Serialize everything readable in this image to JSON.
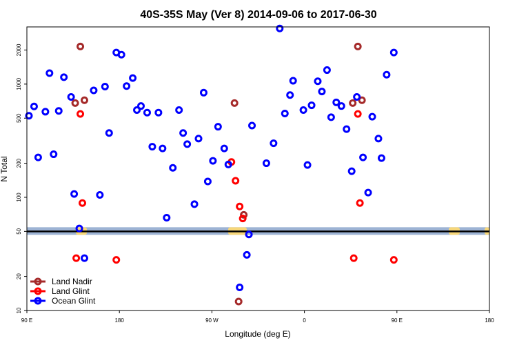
{
  "chart_data": {
    "type": "scatter",
    "title": "40S-35S May (Ver 8)   2014-09-06 to 2017-06-30",
    "xlabel": "Longitude (deg E)",
    "ylabel": "N Total",
    "xlim": [
      90,
      450
    ],
    "ylim": [
      10,
      3200
    ],
    "yscale": "log",
    "x_ticks": [
      {
        "value": 90,
        "label": "90 E"
      },
      {
        "value": 180,
        "label": "180"
      },
      {
        "value": 270,
        "label": "90 W"
      },
      {
        "value": 360,
        "label": "0"
      },
      {
        "value": 450,
        "label": "90 E"
      },
      {
        "value": 540,
        "label": "180"
      }
    ],
    "y_ticks": [
      {
        "value": 10,
        "label": "10"
      },
      {
        "value": 20,
        "label": "20"
      },
      {
        "value": 50,
        "label": "50"
      },
      {
        "value": 100,
        "label": "100"
      },
      {
        "value": 200,
        "label": "200"
      },
      {
        "value": 500,
        "label": "500"
      },
      {
        "value": 1000,
        "label": "1000"
      },
      {
        "value": 2000,
        "label": "2000"
      }
    ],
    "legend_position": "bottom-left",
    "reference_line": {
      "y": 50
    },
    "series": [
      {
        "name": "Land Nadir",
        "color": "#a52a2a",
        "points": [
          {
            "x": 137,
            "y": 680
          },
          {
            "x": 142,
            "y": 2150
          },
          {
            "x": 146,
            "y": 720
          },
          {
            "x": 292,
            "y": 680
          },
          {
            "x": 301,
            "y": 70
          },
          {
            "x": 296,
            "y": 12
          },
          {
            "x": 407,
            "y": 680
          },
          {
            "x": 412,
            "y": 2150
          },
          {
            "x": 416,
            "y": 720
          }
        ]
      },
      {
        "name": "Land Glint",
        "color": "#ff0000",
        "points": [
          {
            "x": 142,
            "y": 545
          },
          {
            "x": 144,
            "y": 89
          },
          {
            "x": 138,
            "y": 29
          },
          {
            "x": 177,
            "y": 28
          },
          {
            "x": 289,
            "y": 205
          },
          {
            "x": 293,
            "y": 140
          },
          {
            "x": 297,
            "y": 83
          },
          {
            "x": 300,
            "y": 65
          },
          {
            "x": 412,
            "y": 545
          },
          {
            "x": 414,
            "y": 89
          },
          {
            "x": 408,
            "y": 29
          },
          {
            "x": 447,
            "y": 28
          }
        ]
      },
      {
        "name": "Ocean Glint",
        "color": "#0000ff",
        "points": [
          {
            "x": 92,
            "y": 525
          },
          {
            "x": 97,
            "y": 635
          },
          {
            "x": 101,
            "y": 225
          },
          {
            "x": 108,
            "y": 570
          },
          {
            "x": 112,
            "y": 1250
          },
          {
            "x": 116,
            "y": 240
          },
          {
            "x": 121,
            "y": 580
          },
          {
            "x": 126,
            "y": 1150
          },
          {
            "x": 133,
            "y": 770
          },
          {
            "x": 136,
            "y": 107
          },
          {
            "x": 141,
            "y": 53
          },
          {
            "x": 146,
            "y": 29
          },
          {
            "x": 155,
            "y": 880
          },
          {
            "x": 161,
            "y": 105
          },
          {
            "x": 166,
            "y": 950
          },
          {
            "x": 170,
            "y": 370
          },
          {
            "x": 177,
            "y": 1900
          },
          {
            "x": 182,
            "y": 1820
          },
          {
            "x": 187,
            "y": 960
          },
          {
            "x": 193,
            "y": 1130
          },
          {
            "x": 197,
            "y": 590
          },
          {
            "x": 201,
            "y": 640
          },
          {
            "x": 207,
            "y": 560
          },
          {
            "x": 212,
            "y": 280
          },
          {
            "x": 218,
            "y": 560
          },
          {
            "x": 222,
            "y": 270
          },
          {
            "x": 226,
            "y": 66
          },
          {
            "x": 232,
            "y": 182
          },
          {
            "x": 238,
            "y": 590
          },
          {
            "x": 242,
            "y": 370
          },
          {
            "x": 246,
            "y": 295
          },
          {
            "x": 253,
            "y": 87
          },
          {
            "x": 257,
            "y": 330
          },
          {
            "x": 262,
            "y": 840
          },
          {
            "x": 266,
            "y": 138
          },
          {
            "x": 271,
            "y": 210
          },
          {
            "x": 276,
            "y": 420
          },
          {
            "x": 282,
            "y": 270
          },
          {
            "x": 286,
            "y": 195
          },
          {
            "x": 297,
            "y": 16
          },
          {
            "x": 304,
            "y": 31
          },
          {
            "x": 306,
            "y": 47
          },
          {
            "x": 309,
            "y": 430
          },
          {
            "x": 323,
            "y": 200
          },
          {
            "x": 330,
            "y": 300
          },
          {
            "x": 336,
            "y": 3100
          },
          {
            "x": 341,
            "y": 550
          },
          {
            "x": 346,
            "y": 800
          },
          {
            "x": 349,
            "y": 1070
          },
          {
            "x": 359,
            "y": 590
          },
          {
            "x": 363,
            "y": 193
          },
          {
            "x": 367,
            "y": 650
          },
          {
            "x": 373,
            "y": 1060
          },
          {
            "x": 377,
            "y": 860
          },
          {
            "x": 382,
            "y": 1330
          },
          {
            "x": 386,
            "y": 510
          },
          {
            "x": 391,
            "y": 690
          },
          {
            "x": 396,
            "y": 640
          },
          {
            "x": 401,
            "y": 400
          },
          {
            "x": 406,
            "y": 170
          },
          {
            "x": 411,
            "y": 770
          },
          {
            "x": 417,
            "y": 225
          },
          {
            "x": 422,
            "y": 110
          },
          {
            "x": 426,
            "y": 515
          },
          {
            "x": 432,
            "y": 330
          },
          {
            "x": 435,
            "y": 222
          },
          {
            "x": 440,
            "y": 1210
          },
          {
            "x": 447,
            "y": 1900
          }
        ]
      }
    ]
  }
}
